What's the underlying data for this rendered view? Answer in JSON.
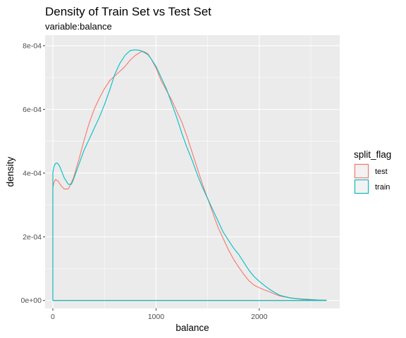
{
  "chart_data": {
    "type": "line",
    "title": "Density of Train Set vs Test Set",
    "subtitle": "variable:balance",
    "xlabel": "balance",
    "ylabel": "density",
    "xlim": [
      -75,
      2780
    ],
    "ylim": [
      -2.5e-05,
      0.000833
    ],
    "x_ticks": [
      0,
      1000,
      2000
    ],
    "x_tick_labels": [
      "0",
      "1000",
      "2000"
    ],
    "y_ticks": [
      0,
      0.0002,
      0.0004,
      0.0006,
      0.0008
    ],
    "y_tick_labels": [
      "0e+00",
      "2e-04",
      "4e-04",
      "6e-04",
      "8e-04"
    ],
    "grid": true,
    "legend": {
      "title": "split_flag",
      "position": "right"
    },
    "series": [
      {
        "name": "test",
        "color": "#F8766D",
        "x": [
          0,
          10,
          25,
          50,
          80,
          110,
          150,
          180,
          200,
          250,
          300,
          350,
          400,
          450,
          500,
          550,
          600,
          650,
          700,
          750,
          800,
          850,
          880,
          920,
          950,
          1000,
          1050,
          1100,
          1150,
          1200,
          1250,
          1300,
          1350,
          1400,
          1450,
          1500,
          1550,
          1600,
          1650,
          1700,
          1750,
          1800,
          1850,
          1900,
          1950,
          2000,
          2050,
          2100,
          2150,
          2200,
          2300,
          2400,
          2500,
          2600,
          2650,
          2650,
          0
        ],
        "y": [
          0.000355,
          0.00037,
          0.00038,
          0.000375,
          0.00036,
          0.00035,
          0.00035,
          0.00037,
          0.000385,
          0.00044,
          0.0005,
          0.000555,
          0.0006,
          0.000635,
          0.000665,
          0.00069,
          0.000705,
          0.00072,
          0.000735,
          0.000755,
          0.00077,
          0.00078,
          0.000782,
          0.000775,
          0.00076,
          0.00073,
          0.00069,
          0.00066,
          0.00063,
          0.000595,
          0.00056,
          0.000515,
          0.000465,
          0.000415,
          0.000365,
          0.00032,
          0.000275,
          0.00023,
          0.000195,
          0.00016,
          0.00013,
          0.000105,
          8.2e-05,
          6.2e-05,
          4.8e-05,
          4e-05,
          3.3e-05,
          2.7e-05,
          2e-05,
          1.4e-05,
          8e-06,
          5e-06,
          3e-06,
          1e-06,
          1e-06,
          0.0,
          0.0
        ]
      },
      {
        "name": "train",
        "color": "#00BFC4",
        "x": [
          0,
          10,
          25,
          40,
          60,
          80,
          110,
          150,
          180,
          200,
          250,
          300,
          350,
          400,
          450,
          500,
          550,
          600,
          650,
          700,
          750,
          800,
          850,
          880,
          920,
          950,
          1000,
          1050,
          1100,
          1150,
          1200,
          1250,
          1300,
          1350,
          1400,
          1450,
          1500,
          1550,
          1600,
          1650,
          1700,
          1750,
          1800,
          1850,
          1900,
          1950,
          2000,
          2050,
          2100,
          2150,
          2200,
          2300,
          2400,
          2500,
          2600,
          2650,
          2650,
          0
        ],
        "y": [
          0.0004,
          0.00042,
          0.00043,
          0.000432,
          0.000425,
          0.00041,
          0.000385,
          0.000365,
          0.000365,
          0.00038,
          0.000425,
          0.00047,
          0.000505,
          0.00054,
          0.000575,
          0.000615,
          0.00066,
          0.00071,
          0.000745,
          0.00077,
          0.000785,
          0.000787,
          0.000785,
          0.00078,
          0.000772,
          0.00076,
          0.000735,
          0.0007,
          0.000665,
          0.00062,
          0.000575,
          0.000525,
          0.00048,
          0.00044,
          0.000395,
          0.000355,
          0.00032,
          0.000285,
          0.00025,
          0.000215,
          0.00019,
          0.000165,
          0.000145,
          0.00012,
          9.5e-05,
          7.5e-05,
          6e-05,
          4.7e-05,
          3.5e-05,
          2.5e-05,
          1.6e-05,
          8e-06,
          4e-06,
          2e-06,
          1e-06,
          1e-06,
          0.0,
          0.0
        ]
      }
    ]
  }
}
